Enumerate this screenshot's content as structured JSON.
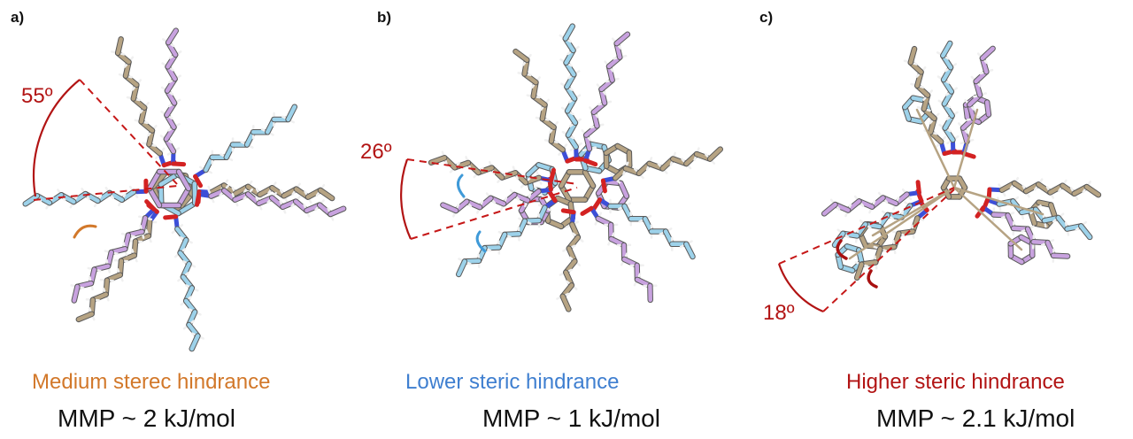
{
  "colors": {
    "orange": "#d2782a",
    "blue": "#3f7fd0",
    "dark_red": "#b21414",
    "chain_tan": "#b6a383",
    "chain_lightblue": "#9dd2ea",
    "chain_lilac": "#c8a2df",
    "nitrogen": "#3c4fd8",
    "oxygen": "#d32222",
    "hydrogen": "#f0f0f0"
  },
  "icons": {
    "rotation_arrow": "curved-arrow-icon"
  },
  "panels": [
    {
      "letter": "a)",
      "angle": "55º",
      "caption": "Medium sterec hindrance",
      "caption_color": "orange",
      "energy": "MMP ~ 2 kJ/mol"
    },
    {
      "letter": "b)",
      "angle": "26º",
      "caption": "Lower steric hindrance",
      "caption_color": "blue",
      "energy": "MMP ~ 1 kJ/mol"
    },
    {
      "letter": "c)",
      "angle": "18º",
      "caption": "Higher steric hindrance",
      "caption_color": "dark_red",
      "energy": "MMP ~ 2.1 kJ/mol"
    }
  ]
}
